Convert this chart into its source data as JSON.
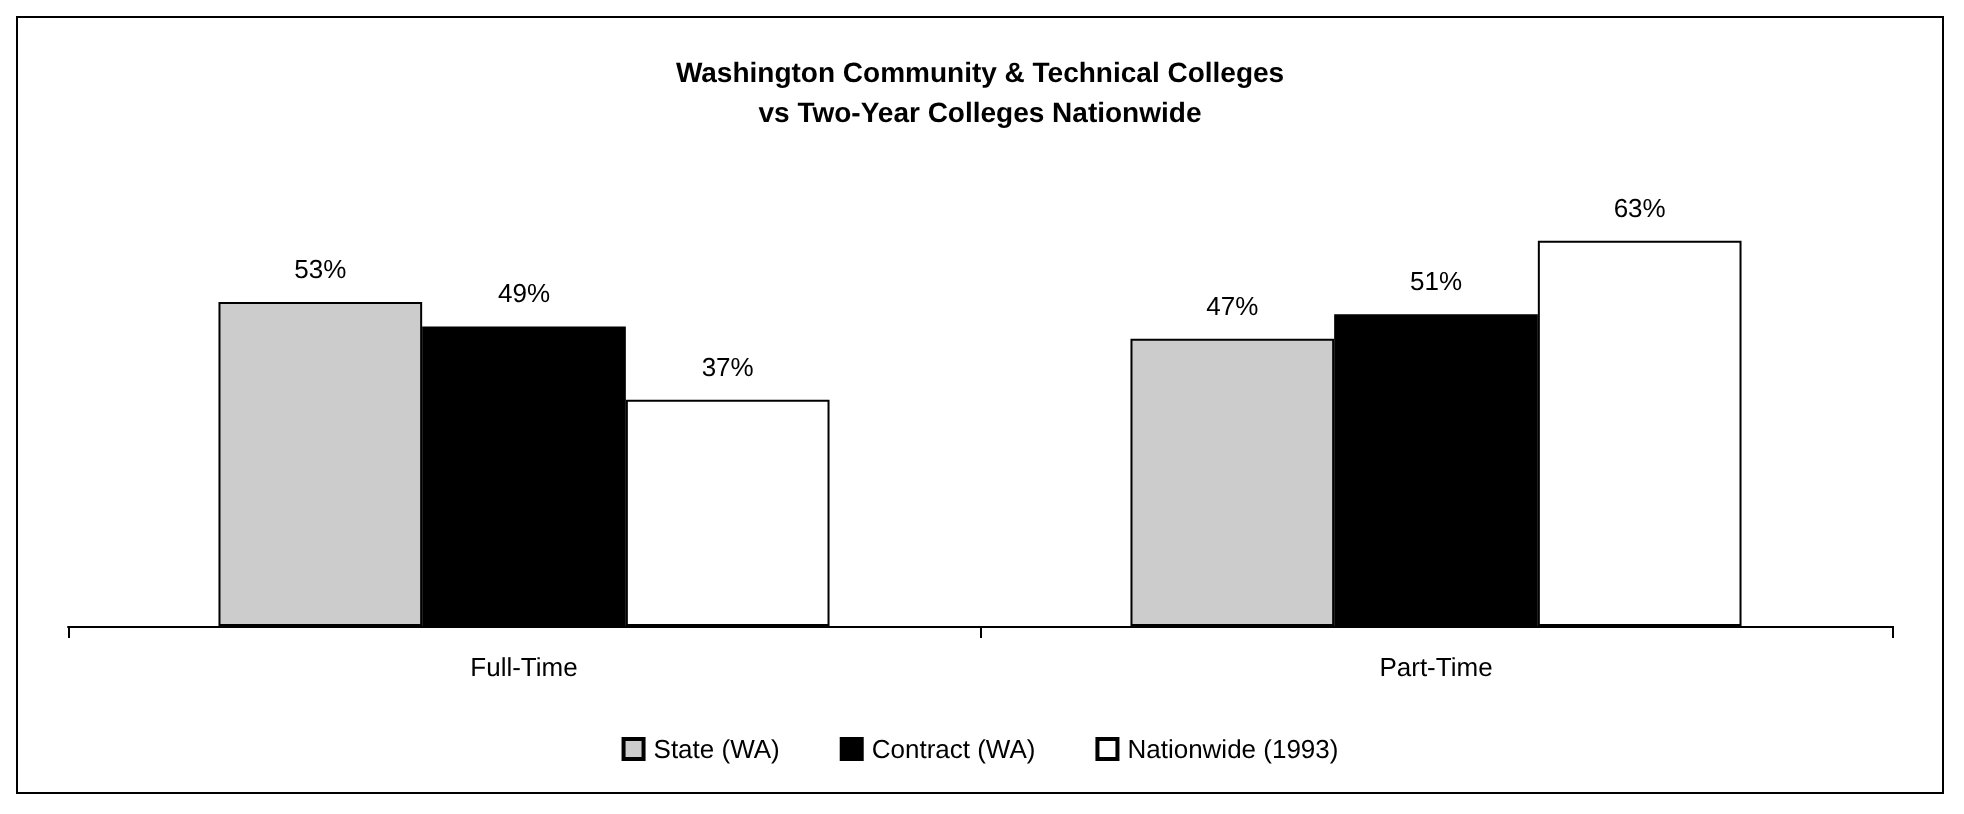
{
  "chart_data": {
    "type": "bar",
    "title": "Washington Community & Technical Colleges\nvs Two-Year Colleges Nationwide",
    "categories": [
      "Full-Time",
      "Part-Time"
    ],
    "series": [
      {
        "name": "State (WA)",
        "color": "#cccccc",
        "values": [
          53,
          47
        ],
        "value_labels": [
          "53%",
          "47%"
        ]
      },
      {
        "name": "Contract (WA)",
        "color": "#000000",
        "values": [
          49,
          51
        ],
        "value_labels": [
          "49%",
          "51%"
        ]
      },
      {
        "name": "Nationwide (1993)",
        "color": "#ffffff",
        "values": [
          37,
          63
        ],
        "value_labels": [
          "37%",
          "63%"
        ]
      }
    ],
    "grid": false,
    "legend": "bottom"
  }
}
